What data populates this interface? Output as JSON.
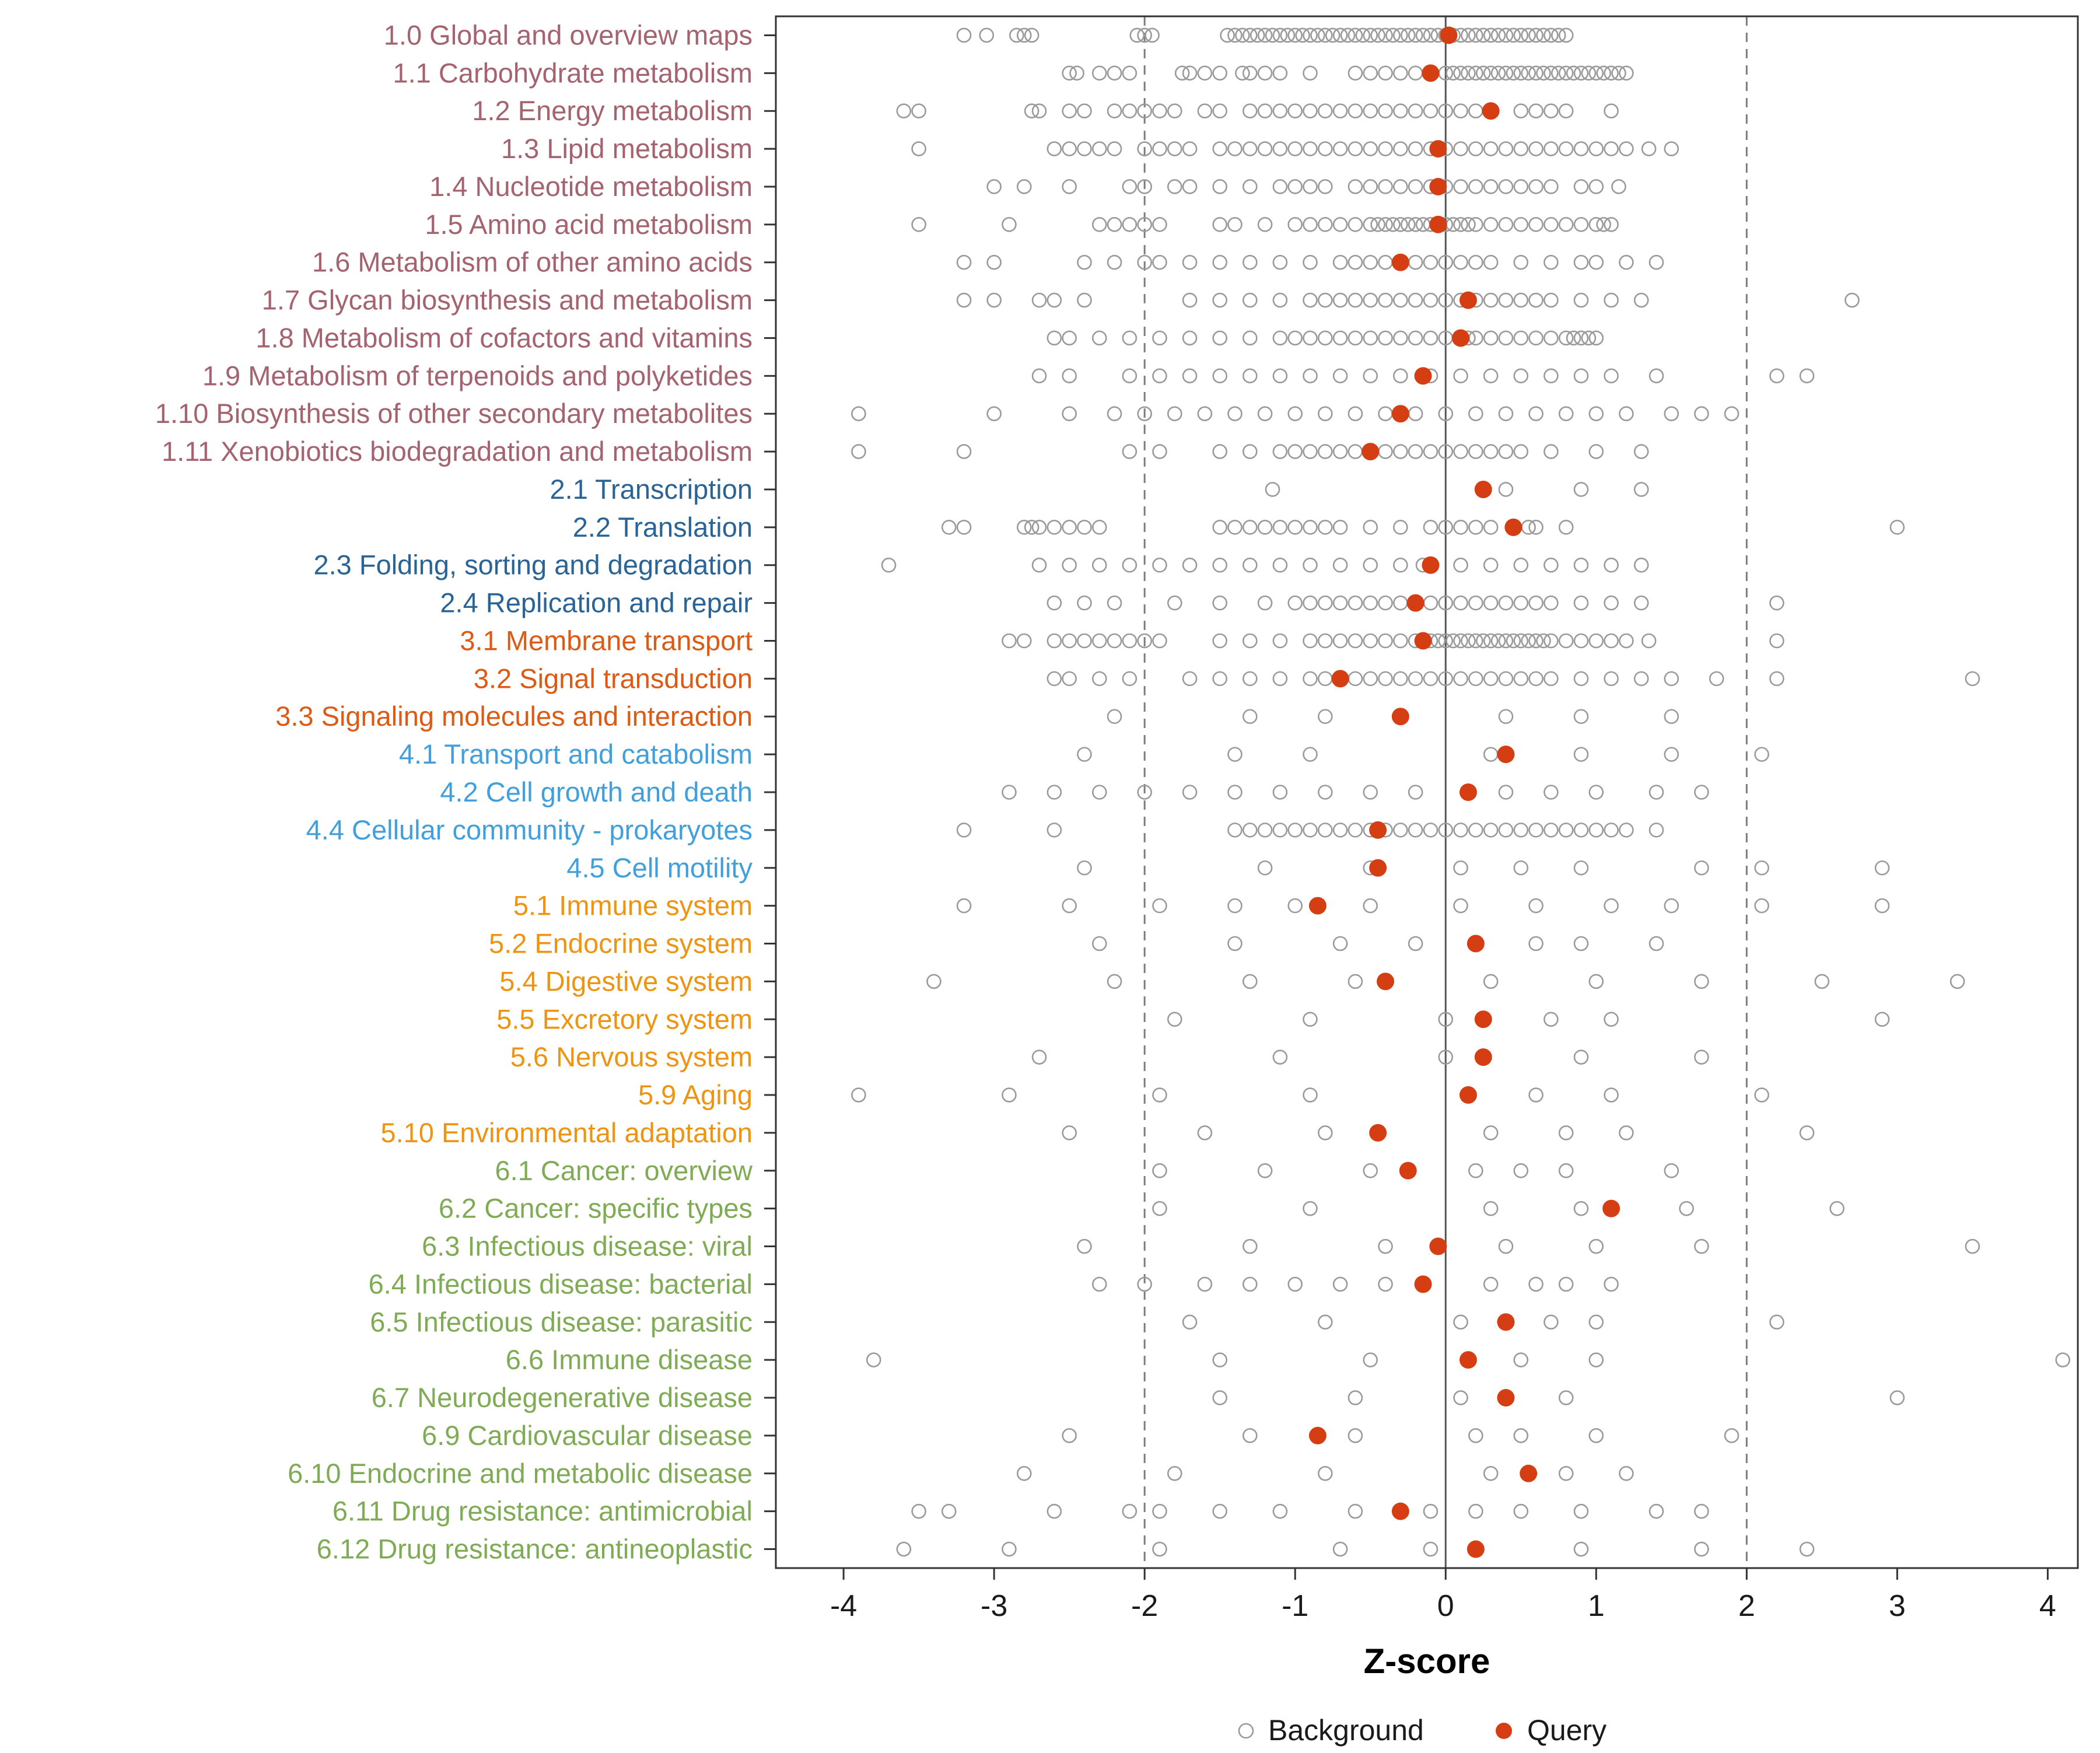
{
  "chart_data": {
    "type": "scatter",
    "title": "",
    "xlabel": "Z-score",
    "x_ticks": [
      -4,
      -3,
      -2,
      -1,
      0,
      1,
      2,
      3,
      4
    ],
    "xlim": [
      -4.45,
      4.2
    ],
    "grid": false,
    "reference_lines": {
      "solid": [
        0
      ],
      "dashed": [
        -2,
        2
      ]
    },
    "legend_position": "bottom",
    "legend": [
      {
        "label": "Background",
        "style": "open-gray-circle"
      },
      {
        "label": "Query",
        "style": "filled-red-circle"
      }
    ],
    "colors": {
      "background": "#9a9a9a",
      "query": "#d53e13",
      "axis_text": "#1a1a1a",
      "panel_border": "#333333",
      "zero_line": "#555555",
      "dashed_line": "#7d7d7d",
      "groups": {
        "1": "#a4636e",
        "2": "#2a6496",
        "3": "#dd5a14",
        "4": "#41a0dc",
        "5": "#ee9410",
        "6": "#7fab55"
      }
    },
    "rows": [
      {
        "label": "1.0 Global and overview maps",
        "group": "1",
        "query": 0.02,
        "bg": [
          -3.2,
          -3.05,
          -2.85,
          -2.8,
          -2.75,
          -2.05,
          -2.0,
          -1.95,
          -1.45,
          -1.4,
          -1.35,
          -1.3,
          -1.25,
          -1.2,
          -1.15,
          -1.1,
          -1.05,
          -1.0,
          -0.95,
          -0.9,
          -0.85,
          -0.8,
          -0.75,
          -0.7,
          -0.65,
          -0.6,
          -0.55,
          -0.5,
          -0.45,
          -0.4,
          -0.35,
          -0.3,
          -0.25,
          -0.2,
          -0.15,
          -0.1,
          -0.05,
          0.0,
          0.05,
          0.1,
          0.15,
          0.2,
          0.25,
          0.3,
          0.35,
          0.4,
          0.45,
          0.5,
          0.55,
          0.6,
          0.65,
          0.7,
          0.75,
          0.8
        ]
      },
      {
        "label": "1.1 Carbohydrate metabolism",
        "group": "1",
        "query": -0.1,
        "bg": [
          -2.5,
          -2.45,
          -2.3,
          -2.2,
          -2.1,
          -1.75,
          -1.7,
          -1.6,
          -1.5,
          -1.35,
          -1.3,
          -1.2,
          -1.1,
          -0.9,
          -0.6,
          -0.5,
          -0.4,
          -0.3,
          -0.2,
          -0.1,
          0.0,
          0.05,
          0.1,
          0.15,
          0.2,
          0.25,
          0.3,
          0.35,
          0.4,
          0.45,
          0.5,
          0.55,
          0.6,
          0.65,
          0.7,
          0.75,
          0.8,
          0.85,
          0.9,
          0.95,
          1.0,
          1.05,
          1.1,
          1.15,
          1.2
        ]
      },
      {
        "label": "1.2 Energy metabolism",
        "group": "1",
        "query": 0.3,
        "bg": [
          -3.6,
          -3.5,
          -2.75,
          -2.7,
          -2.5,
          -2.4,
          -2.2,
          -2.1,
          -2.0,
          -1.9,
          -1.8,
          -1.6,
          -1.5,
          -1.3,
          -1.2,
          -1.1,
          -1.0,
          -0.9,
          -0.8,
          -0.7,
          -0.6,
          -0.5,
          -0.4,
          -0.3,
          -0.2,
          -0.1,
          0.0,
          0.1,
          0.2,
          0.5,
          0.6,
          0.7,
          0.8,
          1.1
        ]
      },
      {
        "label": "1.3 Lipid metabolism",
        "group": "1",
        "query": -0.05,
        "bg": [
          -3.5,
          -2.6,
          -2.5,
          -2.4,
          -2.3,
          -2.2,
          -2.0,
          -1.9,
          -1.8,
          -1.7,
          -1.5,
          -1.4,
          -1.3,
          -1.2,
          -1.1,
          -1.0,
          -0.9,
          -0.8,
          -0.7,
          -0.6,
          -0.5,
          -0.4,
          -0.3,
          -0.2,
          -0.1,
          0.0,
          0.1,
          0.2,
          0.3,
          0.4,
          0.5,
          0.6,
          0.7,
          0.8,
          0.9,
          1.0,
          1.1,
          1.2,
          1.35,
          1.5
        ]
      },
      {
        "label": "1.4 Nucleotide metabolism",
        "group": "1",
        "query": -0.05,
        "bg": [
          -3.0,
          -2.8,
          -2.5,
          -2.1,
          -2.0,
          -1.8,
          -1.7,
          -1.5,
          -1.3,
          -1.1,
          -1.0,
          -0.9,
          -0.8,
          -0.6,
          -0.5,
          -0.4,
          -0.3,
          -0.2,
          -0.1,
          0.0,
          0.1,
          0.2,
          0.3,
          0.4,
          0.5,
          0.6,
          0.7,
          0.9,
          1.0,
          1.15
        ]
      },
      {
        "label": "1.5 Amino acid metabolism",
        "group": "1",
        "query": -0.05,
        "bg": [
          -3.5,
          -2.9,
          -2.3,
          -2.2,
          -2.1,
          -2.0,
          -1.9,
          -1.5,
          -1.4,
          -1.2,
          -1.0,
          -0.9,
          -0.8,
          -0.7,
          -0.6,
          -0.5,
          -0.45,
          -0.4,
          -0.35,
          -0.3,
          -0.25,
          -0.2,
          -0.15,
          -0.1,
          -0.05,
          0.0,
          0.05,
          0.1,
          0.15,
          0.2,
          0.3,
          0.4,
          0.5,
          0.6,
          0.7,
          0.8,
          0.9,
          1.0,
          1.05,
          1.1
        ]
      },
      {
        "label": "1.6 Metabolism of other amino acids",
        "group": "1",
        "query": -0.3,
        "bg": [
          -3.2,
          -3.0,
          -2.4,
          -2.2,
          -2.0,
          -1.9,
          -1.7,
          -1.5,
          -1.3,
          -1.1,
          -0.9,
          -0.7,
          -0.6,
          -0.5,
          -0.4,
          -0.2,
          -0.1,
          0.0,
          0.1,
          0.2,
          0.3,
          0.5,
          0.7,
          0.9,
          1.0,
          1.2,
          1.4
        ]
      },
      {
        "label": "1.7 Glycan biosynthesis and metabolism",
        "group": "1",
        "query": 0.15,
        "bg": [
          -3.2,
          -3.0,
          -2.7,
          -2.6,
          -2.4,
          -1.7,
          -1.5,
          -1.3,
          -1.1,
          -0.9,
          -0.8,
          -0.7,
          -0.6,
          -0.5,
          -0.4,
          -0.3,
          -0.2,
          -0.1,
          0.0,
          0.1,
          0.2,
          0.3,
          0.4,
          0.5,
          0.6,
          0.7,
          0.9,
          1.1,
          1.3,
          2.7
        ]
      },
      {
        "label": "1.8 Metabolism of cofactors and vitamins",
        "group": "1",
        "query": 0.1,
        "bg": [
          -2.6,
          -2.5,
          -2.3,
          -2.1,
          -1.9,
          -1.7,
          -1.5,
          -1.3,
          -1.1,
          -1.0,
          -0.9,
          -0.8,
          -0.7,
          -0.6,
          -0.5,
          -0.4,
          -0.3,
          -0.2,
          -0.1,
          0.0,
          0.15,
          0.2,
          0.3,
          0.4,
          0.5,
          0.6,
          0.7,
          0.8,
          0.85,
          0.9,
          0.95,
          1.0
        ]
      },
      {
        "label": "1.9 Metabolism of terpenoids and polyketides",
        "group": "1",
        "query": -0.15,
        "bg": [
          -2.7,
          -2.5,
          -2.1,
          -1.9,
          -1.7,
          -1.5,
          -1.3,
          -1.1,
          -0.9,
          -0.7,
          -0.5,
          -0.3,
          -0.1,
          0.1,
          0.3,
          0.5,
          0.7,
          0.9,
          1.1,
          1.4,
          2.2,
          2.4
        ]
      },
      {
        "label": "1.10 Biosynthesis of other secondary metabolites",
        "group": "1",
        "query": -0.3,
        "bg": [
          -3.9,
          -3.0,
          -2.5,
          -2.2,
          -2.0,
          -1.8,
          -1.6,
          -1.4,
          -1.2,
          -1.0,
          -0.8,
          -0.6,
          -0.4,
          -0.2,
          0.0,
          0.2,
          0.4,
          0.6,
          0.8,
          1.0,
          1.2,
          1.5,
          1.7,
          1.9
        ]
      },
      {
        "label": "1.11 Xenobiotics biodegradation and metabolism",
        "group": "1",
        "query": -0.5,
        "bg": [
          -3.9,
          -3.2,
          -2.1,
          -1.9,
          -1.5,
          -1.3,
          -1.1,
          -1.0,
          -0.9,
          -0.8,
          -0.7,
          -0.6,
          -0.4,
          -0.3,
          -0.2,
          -0.1,
          0.0,
          0.1,
          0.2,
          0.3,
          0.4,
          0.5,
          0.7,
          1.0,
          1.3
        ]
      },
      {
        "label": "2.1 Transcription",
        "group": "2",
        "query": 0.25,
        "bg": [
          -1.15,
          0.4,
          0.9,
          1.3
        ]
      },
      {
        "label": "2.2 Translation",
        "group": "2",
        "query": 0.45,
        "bg": [
          -3.3,
          -3.2,
          -2.8,
          -2.75,
          -2.7,
          -2.6,
          -2.5,
          -2.4,
          -2.3,
          -1.5,
          -1.4,
          -1.3,
          -1.2,
          -1.1,
          -1.0,
          -0.9,
          -0.8,
          -0.7,
          -0.5,
          -0.3,
          -0.1,
          0.0,
          0.1,
          0.2,
          0.3,
          0.55,
          0.6,
          0.8,
          3.0
        ]
      },
      {
        "label": "2.3 Folding, sorting and degradation",
        "group": "2",
        "query": -0.1,
        "bg": [
          -3.7,
          -2.7,
          -2.5,
          -2.3,
          -2.1,
          -1.9,
          -1.7,
          -1.5,
          -1.3,
          -1.1,
          -0.9,
          -0.7,
          -0.5,
          -0.3,
          -0.15,
          0.1,
          0.3,
          0.5,
          0.7,
          0.9,
          1.1,
          1.3
        ]
      },
      {
        "label": "2.4 Replication and repair",
        "group": "2",
        "query": -0.2,
        "bg": [
          -2.6,
          -2.4,
          -2.2,
          -1.8,
          -1.5,
          -1.2,
          -1.0,
          -0.9,
          -0.8,
          -0.7,
          -0.6,
          -0.5,
          -0.4,
          -0.3,
          -0.1,
          0.0,
          0.1,
          0.2,
          0.3,
          0.4,
          0.5,
          0.6,
          0.7,
          0.9,
          1.1,
          1.3,
          2.2
        ]
      },
      {
        "label": "3.1 Membrane transport",
        "group": "3",
        "query": -0.15,
        "bg": [
          -2.9,
          -2.8,
          -2.6,
          -2.5,
          -2.4,
          -2.3,
          -2.2,
          -2.1,
          -2.0,
          -1.9,
          -1.5,
          -1.3,
          -1.1,
          -0.9,
          -0.8,
          -0.7,
          -0.6,
          -0.5,
          -0.4,
          -0.3,
          -0.2,
          -0.1,
          -0.05,
          0.0,
          0.05,
          0.1,
          0.15,
          0.2,
          0.25,
          0.3,
          0.35,
          0.4,
          0.45,
          0.5,
          0.55,
          0.6,
          0.65,
          0.7,
          0.8,
          0.9,
          1.0,
          1.1,
          1.2,
          1.35,
          2.2
        ]
      },
      {
        "label": "3.2 Signal transduction",
        "group": "3",
        "query": -0.7,
        "bg": [
          -2.6,
          -2.5,
          -2.3,
          -2.1,
          -1.7,
          -1.5,
          -1.3,
          -1.1,
          -0.9,
          -0.8,
          -0.6,
          -0.5,
          -0.4,
          -0.3,
          -0.2,
          -0.1,
          0.0,
          0.1,
          0.2,
          0.3,
          0.4,
          0.5,
          0.6,
          0.7,
          0.9,
          1.1,
          1.3,
          1.5,
          1.8,
          2.2,
          3.5
        ]
      },
      {
        "label": "3.3 Signaling molecules and interaction",
        "group": "3",
        "query": -0.3,
        "bg": [
          -2.2,
          -1.3,
          -0.8,
          0.4,
          0.9,
          1.5
        ]
      },
      {
        "label": "4.1 Transport and catabolism",
        "group": "4",
        "query": 0.4,
        "bg": [
          -2.4,
          -1.4,
          -0.9,
          0.3,
          0.9,
          1.5,
          2.1
        ]
      },
      {
        "label": "4.2 Cell growth and death",
        "group": "4",
        "query": 0.15,
        "bg": [
          -2.9,
          -2.6,
          -2.3,
          -2.0,
          -1.7,
          -1.4,
          -1.1,
          -0.8,
          -0.5,
          -0.2,
          0.4,
          0.7,
          1.0,
          1.4,
          1.7
        ]
      },
      {
        "label": "4.4 Cellular community - prokaryotes",
        "group": "4",
        "query": -0.45,
        "bg": [
          -3.2,
          -2.6,
          -1.4,
          -1.3,
          -1.2,
          -1.1,
          -1.0,
          -0.9,
          -0.8,
          -0.7,
          -0.6,
          -0.5,
          -0.4,
          -0.3,
          -0.2,
          -0.1,
          0.0,
          0.1,
          0.2,
          0.3,
          0.4,
          0.5,
          0.6,
          0.7,
          0.8,
          0.9,
          1.0,
          1.1,
          1.2,
          1.4
        ]
      },
      {
        "label": "4.5 Cell motility",
        "group": "4",
        "query": -0.45,
        "bg": [
          -2.4,
          -1.2,
          -0.5,
          0.1,
          0.5,
          0.9,
          1.7,
          2.1,
          2.9
        ]
      },
      {
        "label": "5.1 Immune system",
        "group": "5",
        "query": -0.85,
        "bg": [
          -3.2,
          -2.5,
          -1.9,
          -1.4,
          -1.0,
          -0.5,
          0.1,
          0.6,
          1.1,
          1.5,
          2.1,
          2.9
        ]
      },
      {
        "label": "5.2 Endocrine system",
        "group": "5",
        "query": 0.2,
        "bg": [
          -2.3,
          -1.4,
          -0.7,
          -0.2,
          0.6,
          0.9,
          1.4
        ]
      },
      {
        "label": "5.4 Digestive system",
        "group": "5",
        "query": -0.4,
        "bg": [
          -3.4,
          -2.2,
          -1.3,
          -0.6,
          0.3,
          1.0,
          1.7,
          2.5,
          3.4
        ]
      },
      {
        "label": "5.5 Excretory system",
        "group": "5",
        "query": 0.25,
        "bg": [
          -1.8,
          -0.9,
          0.0,
          0.7,
          1.1,
          2.9
        ]
      },
      {
        "label": "5.6 Nervous system",
        "group": "5",
        "query": 0.25,
        "bg": [
          -2.7,
          -1.1,
          0.0,
          0.9,
          1.7
        ]
      },
      {
        "label": "5.9 Aging",
        "group": "5",
        "query": 0.15,
        "bg": [
          -3.9,
          -2.9,
          -1.9,
          -0.9,
          0.6,
          1.1,
          2.1
        ]
      },
      {
        "label": "5.10 Environmental adaptation",
        "group": "5",
        "query": -0.45,
        "bg": [
          -2.5,
          -1.6,
          -0.8,
          0.3,
          0.8,
          1.2,
          2.4
        ]
      },
      {
        "label": "6.1 Cancer: overview",
        "group": "6",
        "query": -0.25,
        "bg": [
          -1.9,
          -1.2,
          -0.5,
          0.2,
          0.5,
          0.8,
          1.5
        ]
      },
      {
        "label": "6.2 Cancer: specific types",
        "group": "6",
        "query": 1.1,
        "bg": [
          -1.9,
          -0.9,
          0.3,
          0.9,
          1.6,
          2.6
        ]
      },
      {
        "label": "6.3 Infectious disease: viral",
        "group": "6",
        "query": -0.05,
        "bg": [
          -2.4,
          -1.3,
          -0.4,
          0.4,
          1.0,
          1.7,
          3.5
        ]
      },
      {
        "label": "6.4 Infectious disease: bacterial",
        "group": "6",
        "query": -0.15,
        "bg": [
          -2.3,
          -2.0,
          -1.6,
          -1.3,
          -1.0,
          -0.7,
          -0.4,
          0.3,
          0.6,
          0.8,
          1.1
        ]
      },
      {
        "label": "6.5 Infectious disease: parasitic",
        "group": "6",
        "query": 0.4,
        "bg": [
          -1.7,
          -0.8,
          0.1,
          0.7,
          1.0,
          2.2
        ]
      },
      {
        "label": "6.6 Immune disease",
        "group": "6",
        "query": 0.15,
        "bg": [
          -3.8,
          -1.5,
          -0.5,
          0.5,
          1.0,
          4.1
        ]
      },
      {
        "label": "6.7 Neurodegenerative disease",
        "group": "6",
        "query": 0.4,
        "bg": [
          -1.5,
          -0.6,
          0.1,
          0.8,
          3.0
        ]
      },
      {
        "label": "6.9 Cardiovascular disease",
        "group": "6",
        "query": -0.85,
        "bg": [
          -2.5,
          -1.3,
          -0.6,
          0.2,
          0.5,
          1.0,
          1.9
        ]
      },
      {
        "label": "6.10 Endocrine and metabolic disease",
        "group": "6",
        "query": 0.55,
        "bg": [
          -2.8,
          -1.8,
          -0.8,
          0.3,
          0.8,
          1.2
        ]
      },
      {
        "label": "6.11 Drug resistance: antimicrobial",
        "group": "6",
        "query": -0.3,
        "bg": [
          -3.5,
          -3.3,
          -2.6,
          -2.1,
          -1.9,
          -1.5,
          -1.1,
          -0.6,
          -0.1,
          0.2,
          0.5,
          0.9,
          1.4,
          1.7
        ]
      },
      {
        "label": "6.12 Drug resistance: antineoplastic",
        "group": "6",
        "query": 0.2,
        "bg": [
          -3.6,
          -2.9,
          -1.9,
          -0.7,
          -0.1,
          0.9,
          1.7,
          2.4
        ]
      }
    ]
  }
}
